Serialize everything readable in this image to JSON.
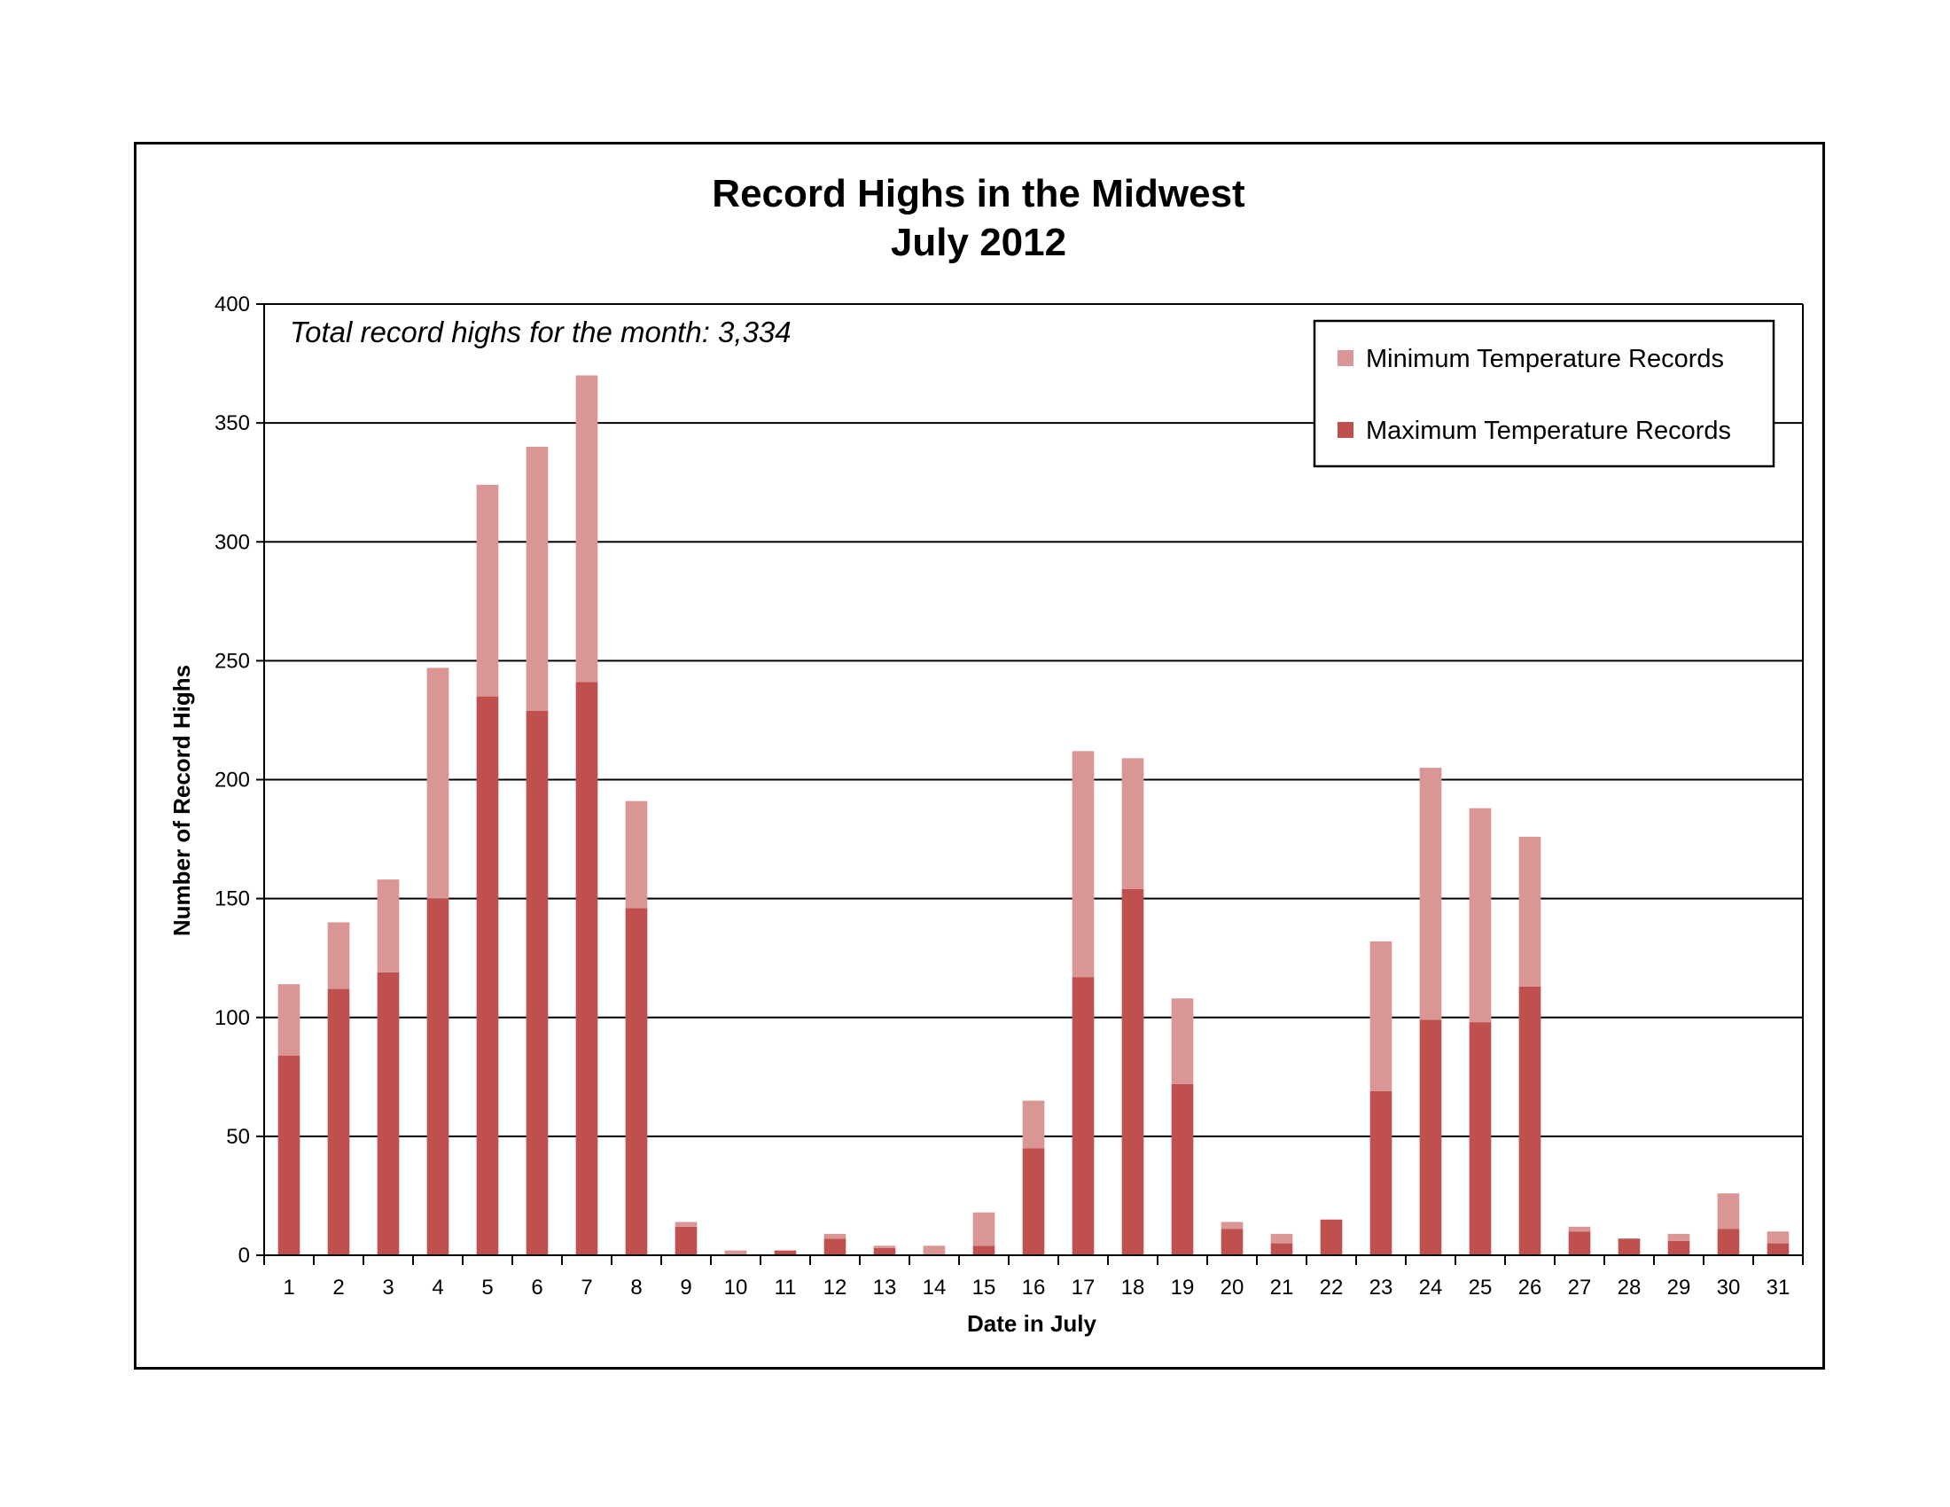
{
  "chart_data": {
    "type": "bar",
    "stacked": true,
    "title": "Record Highs in the Midwest",
    "subtitle": "July 2012",
    "xlabel": "Date in July",
    "ylabel": "Number of Record Highs",
    "annotation": "Total record highs for the month: 3,334",
    "ylim": [
      0,
      400
    ],
    "yticks": [
      0,
      50,
      100,
      150,
      200,
      250,
      300,
      350,
      400
    ],
    "grid": true,
    "legend_position": "top-right",
    "categories": [
      "1",
      "2",
      "3",
      "4",
      "5",
      "6",
      "7",
      "8",
      "9",
      "10",
      "11",
      "12",
      "13",
      "14",
      "15",
      "16",
      "17",
      "18",
      "19",
      "20",
      "21",
      "22",
      "23",
      "24",
      "25",
      "26",
      "27",
      "28",
      "29",
      "30",
      "31"
    ],
    "series": [
      {
        "name": "Maximum Temperature Records",
        "color": "#c0504d",
        "values": [
          84,
          112,
          119,
          150,
          235,
          229,
          241,
          146,
          12,
          0,
          2,
          7,
          3,
          0,
          4,
          45,
          117,
          154,
          72,
          11,
          5,
          15,
          69,
          99,
          98,
          113,
          10,
          7,
          6,
          11,
          5
        ]
      },
      {
        "name": "Minimum Temperature Records",
        "color": "#d99694",
        "values": [
          30,
          28,
          39,
          97,
          89,
          111,
          129,
          45,
          2,
          2,
          0,
          2,
          1,
          4,
          14,
          20,
          95,
          55,
          36,
          3,
          4,
          0,
          63,
          106,
          90,
          63,
          2,
          0,
          3,
          15,
          5
        ]
      }
    ]
  }
}
